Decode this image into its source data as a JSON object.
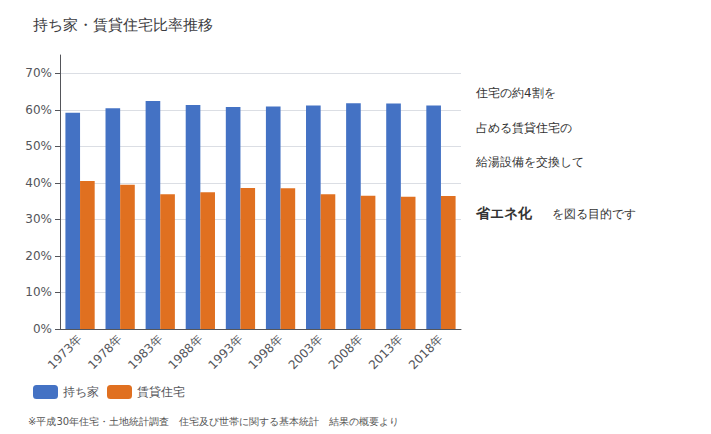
{
  "chart_data": {
    "type": "bar",
    "title": "持ち家・賃貸住宅比率推移",
    "categories": [
      "1973年",
      "1978年",
      "1983年",
      "1988年",
      "1993年",
      "1998年",
      "2003年",
      "2008年",
      "2013年",
      "2018年"
    ],
    "series": [
      {
        "name": "持ち家",
        "color": "#4472C4",
        "values": [
          0.592,
          0.604,
          0.624,
          0.613,
          0.608,
          0.609,
          0.612,
          0.618,
          0.617,
          0.612
        ]
      },
      {
        "name": "賃貸住宅",
        "color": "#E07020",
        "values": [
          0.405,
          0.395,
          0.369,
          0.374,
          0.386,
          0.385,
          0.369,
          0.365,
          0.362,
          0.364
        ]
      }
    ],
    "ylim": [
      0,
      0.75
    ],
    "yticks": [
      {
        "value": 0,
        "label": "0%"
      },
      {
        "value": 0.1,
        "label": "10%"
      },
      {
        "value": 0.2,
        "label": "20%"
      },
      {
        "value": 0.3,
        "label": "30%"
      },
      {
        "value": 0.4,
        "label": "40%"
      },
      {
        "value": 0.5,
        "label": "50%"
      },
      {
        "value": 0.6,
        "label": "60%"
      },
      {
        "value": 0.7,
        "label": "70%"
      }
    ],
    "grid": true,
    "legend": "lower left",
    "annotations": [
      "住宅の約4割を",
      "占める賃貸住宅の",
      "給湯設備を交換して",
      "省エネ化",
      "を図る目的です"
    ],
    "footnote": "※平成30年住宅・土地統計調査　住宅及び世帯に関する基本統計　結果の概要より"
  }
}
